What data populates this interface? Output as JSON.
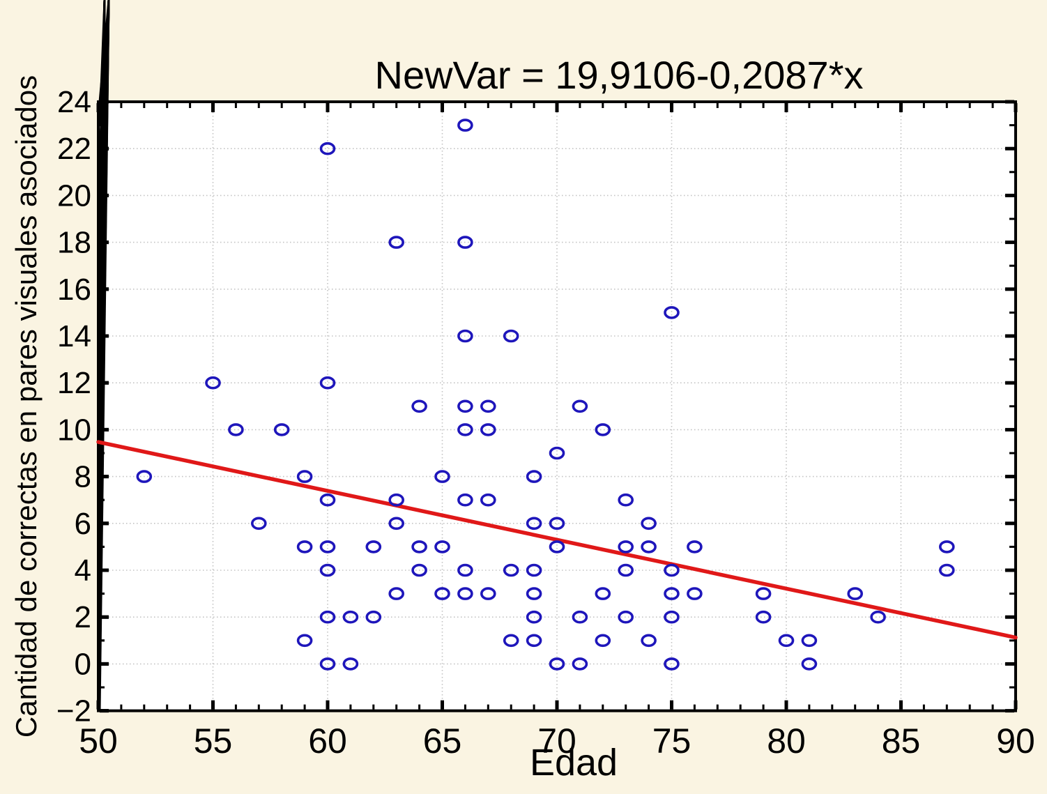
{
  "chart_data": {
    "type": "scatter",
    "title": "NewVar = 19,9106-0,2087*x",
    "xlabel": "Edad",
    "ylabel": "Cantidad de correctas en pares visuales asociados",
    "xlim": [
      50,
      90
    ],
    "ylim": [
      -2,
      24
    ],
    "grid": "on",
    "x_major_ticks": [
      50,
      55,
      60,
      65,
      70,
      75,
      80,
      85,
      90
    ],
    "x_tick_labels": [
      "50",
      "55",
      "60",
      "65",
      "70",
      "75",
      "80",
      "85",
      "90"
    ],
    "y_major_ticks": [
      24,
      22,
      20,
      18,
      16,
      14,
      12,
      10,
      8,
      6,
      4,
      2,
      0,
      -2
    ],
    "y_tick_labels": [
      "24",
      "22",
      "20",
      "18",
      "16",
      "14",
      "12",
      "10",
      "8",
      "6",
      "4",
      "2",
      "0",
      "−2"
    ],
    "x_minor_tick_step": 1,
    "y_minor_tick_step": 1,
    "x_gridlines": [
      55,
      60,
      65,
      70,
      75,
      80,
      85
    ],
    "y_gridlines": [
      22,
      20,
      18,
      16,
      14,
      12,
      10,
      8,
      6,
      4,
      2,
      0
    ],
    "regression_line": {
      "equation": "NewVar = 19,9106-0,2087*x",
      "intercept": 19.9106,
      "slope": -0.2087,
      "x_start": 50,
      "x_end": 90
    },
    "series": [
      {
        "name": "NewVar",
        "marker": "open-circle",
        "points": [
          [
            52,
            8
          ],
          [
            55,
            12
          ],
          [
            56,
            10
          ],
          [
            57,
            6
          ],
          [
            58,
            10
          ],
          [
            59,
            8
          ],
          [
            59,
            5
          ],
          [
            59,
            1
          ],
          [
            60,
            22
          ],
          [
            60,
            12
          ],
          [
            60,
            7
          ],
          [
            60,
            5
          ],
          [
            60,
            4
          ],
          [
            60,
            2
          ],
          [
            60,
            0
          ],
          [
            61,
            2
          ],
          [
            61,
            0
          ],
          [
            62,
            5
          ],
          [
            62,
            2
          ],
          [
            63,
            18
          ],
          [
            63,
            7
          ],
          [
            63,
            6
          ],
          [
            63,
            3
          ],
          [
            64,
            11
          ],
          [
            64,
            5
          ],
          [
            64,
            4
          ],
          [
            65,
            8
          ],
          [
            65,
            5
          ],
          [
            65,
            3
          ],
          [
            66,
            23
          ],
          [
            66,
            18
          ],
          [
            66,
            14
          ],
          [
            66,
            11
          ],
          [
            66,
            10
          ],
          [
            66,
            7
          ],
          [
            66,
            4
          ],
          [
            66,
            3
          ],
          [
            67,
            11
          ],
          [
            67,
            10
          ],
          [
            67,
            7
          ],
          [
            67,
            3
          ],
          [
            68,
            14
          ],
          [
            68,
            4
          ],
          [
            68,
            1
          ],
          [
            69,
            8
          ],
          [
            69,
            6
          ],
          [
            69,
            4
          ],
          [
            69,
            3
          ],
          [
            69,
            2
          ],
          [
            69,
            1
          ],
          [
            70,
            9
          ],
          [
            70,
            6
          ],
          [
            70,
            5
          ],
          [
            70,
            0
          ],
          [
            71,
            11
          ],
          [
            71,
            2
          ],
          [
            71,
            0
          ],
          [
            72,
            10
          ],
          [
            72,
            3
          ],
          [
            72,
            1
          ],
          [
            73,
            7
          ],
          [
            73,
            5
          ],
          [
            73,
            4
          ],
          [
            73,
            2
          ],
          [
            74,
            6
          ],
          [
            74,
            5
          ],
          [
            74,
            1
          ],
          [
            75,
            15
          ],
          [
            75,
            4
          ],
          [
            75,
            3
          ],
          [
            75,
            2
          ],
          [
            75,
            0
          ],
          [
            76,
            5
          ],
          [
            76,
            3
          ],
          [
            79,
            3
          ],
          [
            79,
            2
          ],
          [
            80,
            1
          ],
          [
            81,
            1
          ],
          [
            81,
            0
          ],
          [
            83,
            3
          ],
          [
            84,
            2
          ],
          [
            87,
            5
          ],
          [
            87,
            4
          ]
        ]
      }
    ],
    "colors": {
      "background": "#faf4e2",
      "plot_background": "#ffffff",
      "frame": "#000000",
      "grid": "#c2c2c2",
      "marker": "#1e16bb",
      "regression": "#e01818",
      "text": "#000000"
    },
    "legend": "none"
  }
}
